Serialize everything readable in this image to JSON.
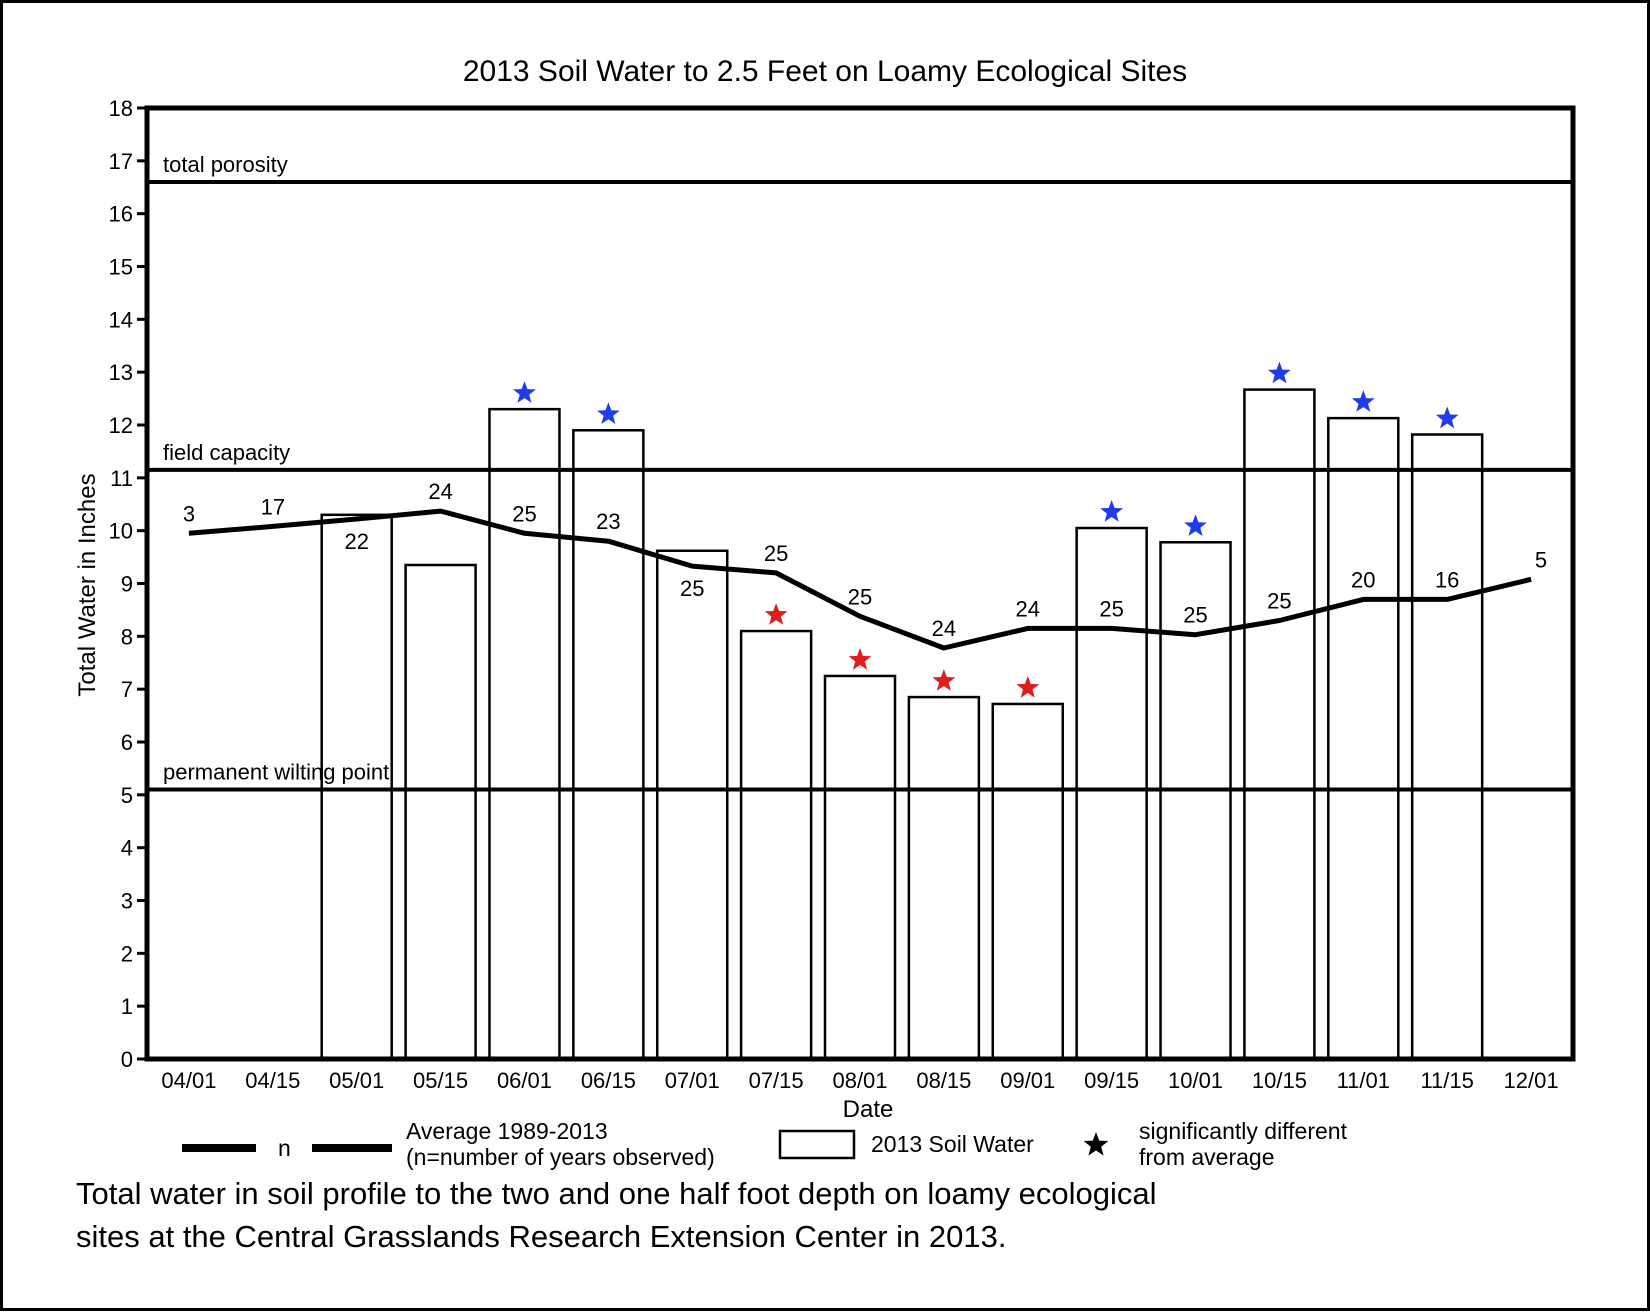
{
  "chart_data": {
    "type": "bar",
    "title": "2013 Soil Water to 2.5 Feet on Loamy Ecological Sites",
    "xlabel": "Date",
    "ylabel": "Total Water in Inches",
    "ylim": [
      0,
      18
    ],
    "yticks": [
      "0",
      "1",
      "2",
      "3",
      "4",
      "5",
      "6",
      "7",
      "8",
      "9",
      "10",
      "11",
      "12",
      "13",
      "14",
      "15",
      "16",
      "17",
      "18"
    ],
    "categories": [
      "04/01",
      "04/15",
      "05/01",
      "05/15",
      "06/01",
      "06/15",
      "07/01",
      "07/15",
      "08/01",
      "08/15",
      "09/01",
      "09/15",
      "10/01",
      "10/15",
      "11/01",
      "11/15",
      "12/01"
    ],
    "series": [
      {
        "name": "2013 Soil Water",
        "type": "bar",
        "values": [
          null,
          null,
          10.3,
          9.35,
          12.3,
          11.9,
          9.62,
          8.1,
          7.25,
          6.85,
          6.72,
          10.05,
          9.78,
          12.67,
          12.13,
          11.82,
          null
        ]
      },
      {
        "name": "Average 1989-2013",
        "type": "line",
        "values": [
          9.95,
          10.08,
          10.22,
          10.37,
          9.95,
          9.8,
          9.33,
          9.2,
          8.38,
          7.78,
          8.15,
          8.15,
          8.03,
          8.3,
          8.7,
          8.7,
          9.08
        ],
        "n_labels": [
          "3",
          "17",
          "22",
          "24",
          "25",
          "23",
          "25",
          "25",
          "25",
          "24",
          "24",
          "25",
          "25",
          "25",
          "20",
          "16",
          "5"
        ]
      }
    ],
    "significant": [
      {
        "category": "06/01",
        "color": "#1e3de6"
      },
      {
        "category": "06/15",
        "color": "#1e3de6"
      },
      {
        "category": "07/15",
        "color": "#e01e1e"
      },
      {
        "category": "08/01",
        "color": "#e01e1e"
      },
      {
        "category": "08/15",
        "color": "#e01e1e"
      },
      {
        "category": "09/01",
        "color": "#e01e1e"
      },
      {
        "category": "09/15",
        "color": "#1e3de6"
      },
      {
        "category": "10/01",
        "color": "#1e3de6"
      },
      {
        "category": "10/15",
        "color": "#1e3de6"
      },
      {
        "category": "11/01",
        "color": "#1e3de6"
      },
      {
        "category": "11/15",
        "color": "#1e3de6"
      }
    ],
    "reference_lines": [
      {
        "label": "total porosity",
        "value": 16.6
      },
      {
        "label": "field capacity",
        "value": 11.15
      },
      {
        "label": "permanent wilting point",
        "value": 5.1
      }
    ],
    "legend": {
      "placement": "bottom",
      "n_item": "n",
      "average_line1": "Average 1989-2013",
      "average_line2": "(n=number of years observed)",
      "bar_item": "2013 Soil Water",
      "star_line1": "significantly different",
      "star_line2": "from average"
    },
    "grid": false
  },
  "caption": {
    "line1": "Total water in soil profile to the two and one half foot depth on loamy ecological",
    "line2": "sites at the Central Grasslands Research Extension Center in 2013."
  }
}
